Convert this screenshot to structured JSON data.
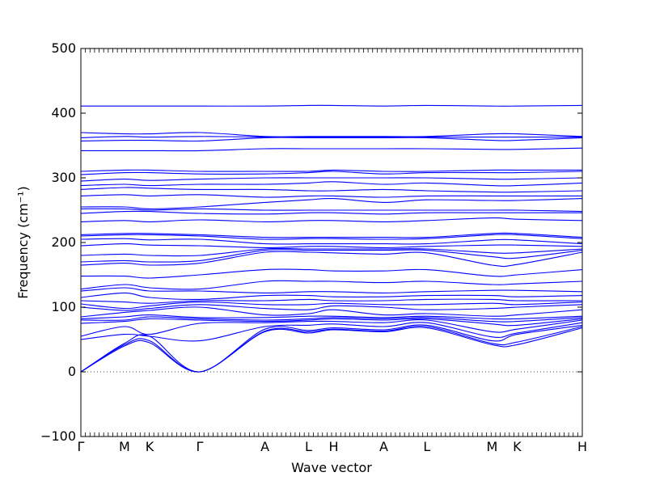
{
  "chart_data": {
    "type": "line",
    "title": "",
    "xlabel": "Wave vector",
    "ylabel": "Frequency (cm⁻¹)",
    "ylim": [
      -100,
      500
    ],
    "yticks": [
      -100,
      0,
      100,
      200,
      300,
      400,
      500
    ],
    "xlim": [
      0,
      1
    ],
    "x_ticks": [
      {
        "label": "Γ",
        "x": 0.0
      },
      {
        "label": "M",
        "x": 0.087
      },
      {
        "label": "K",
        "x": 0.137
      },
      {
        "label": "Γ",
        "x": 0.237
      },
      {
        "label": "A",
        "x": 0.367
      },
      {
        "label": "L",
        "x": 0.454
      },
      {
        "label": "H",
        "x": 0.504
      },
      {
        "label": "A",
        "x": 0.604
      },
      {
        "label": "L",
        "x": 0.69
      },
      {
        "label": "M",
        "x": 0.82
      },
      {
        "label": "K",
        "x": 0.87
      },
      {
        "label": "H",
        "x": 1.0
      }
    ],
    "zero_line": {
      "y": 0,
      "style": "dotted"
    },
    "line_color": "#0000ff",
    "series": [
      {
        "x": [
          0,
          0.087,
          0.137,
          0.237,
          0.367,
          0.454,
          0.504,
          0.604,
          0.69,
          0.82,
          0.87,
          1.0
        ],
        "y": [
          0,
          40,
          45,
          0,
          62,
          60,
          65,
          62,
          68,
          42,
          42,
          68
        ]
      },
      {
        "x": [
          0,
          0.087,
          0.137,
          0.237,
          0.367,
          0.454,
          0.504,
          0.604,
          0.69,
          0.82,
          0.87,
          1.0
        ],
        "y": [
          0,
          42,
          48,
          0,
          63,
          62,
          66,
          63,
          70,
          44,
          46,
          70
        ]
      },
      {
        "x": [
          0,
          0.087,
          0.137,
          0.237,
          0.367,
          0.454,
          0.504,
          0.604,
          0.69,
          0.82,
          0.87,
          1.0
        ],
        "y": [
          0,
          44,
          55,
          0,
          66,
          64,
          68,
          65,
          72,
          48,
          58,
          72
        ]
      },
      {
        "x": [
          0,
          0.087,
          0.137,
          0.237,
          0.367,
          0.454,
          0.504,
          0.604,
          0.69,
          0.82,
          0.87,
          1.0
        ],
        "y": [
          50,
          58,
          55,
          48,
          70,
          72,
          74,
          70,
          76,
          54,
          60,
          76
        ]
      },
      {
        "x": [
          0,
          0.087,
          0.137,
          0.237,
          0.367,
          0.454,
          0.504,
          0.604,
          0.69,
          0.82,
          0.87,
          1.0
        ],
        "y": [
          55,
          70,
          58,
          75,
          76,
          78,
          78,
          76,
          80,
          62,
          66,
          80
        ]
      },
      {
        "x": [
          0,
          0.087,
          0.137,
          0.237,
          0.367,
          0.454,
          0.504,
          0.604,
          0.69,
          0.82,
          0.87,
          1.0
        ],
        "y": [
          75,
          78,
          82,
          80,
          78,
          80,
          82,
          80,
          82,
          74,
          72,
          82
        ]
      },
      {
        "x": [
          0,
          0.087,
          0.137,
          0.237,
          0.367,
          0.454,
          0.504,
          0.604,
          0.69,
          0.82,
          0.87,
          1.0
        ],
        "y": [
          80,
          80,
          85,
          82,
          80,
          82,
          84,
          82,
          84,
          78,
          78,
          84
        ]
      },
      {
        "x": [
          0,
          0.087,
          0.137,
          0.237,
          0.367,
          0.454,
          0.504,
          0.604,
          0.69,
          0.82,
          0.87,
          1.0
        ],
        "y": [
          82,
          85,
          88,
          84,
          84,
          86,
          86,
          84,
          86,
          82,
          82,
          86
        ]
      },
      {
        "x": [
          0,
          0.087,
          0.137,
          0.237,
          0.367,
          0.454,
          0.504,
          0.604,
          0.69,
          0.82,
          0.87,
          1.0
        ],
        "y": [
          85,
          92,
          95,
          100,
          88,
          90,
          96,
          88,
          90,
          86,
          88,
          96
        ]
      },
      {
        "x": [
          0,
          0.087,
          0.137,
          0.237,
          0.367,
          0.454,
          0.504,
          0.604,
          0.69,
          0.82,
          0.87,
          1.0
        ],
        "y": [
          100,
          95,
          98,
          104,
          98,
          96,
          102,
          100,
          96,
          98,
          100,
          104
        ]
      },
      {
        "x": [
          0,
          0.087,
          0.137,
          0.237,
          0.367,
          0.454,
          0.504,
          0.604,
          0.69,
          0.82,
          0.87,
          1.0
        ],
        "y": [
          105,
          98,
          102,
          108,
          104,
          104,
          106,
          104,
          104,
          106,
          104,
          108
        ]
      },
      {
        "x": [
          0,
          0.087,
          0.137,
          0.237,
          0.367,
          0.454,
          0.504,
          0.604,
          0.69,
          0.82,
          0.87,
          1.0
        ],
        "y": [
          110,
          108,
          106,
          110,
          110,
          112,
          110,
          110,
          112,
          112,
          110,
          110
        ]
      },
      {
        "x": [
          0,
          0.087,
          0.137,
          0.237,
          0.367,
          0.454,
          0.504,
          0.604,
          0.69,
          0.82,
          0.87,
          1.0
        ],
        "y": [
          115,
          122,
          115,
          112,
          118,
          118,
          116,
          116,
          118,
          118,
          116,
          118
        ]
      },
      {
        "x": [
          0,
          0.087,
          0.137,
          0.237,
          0.367,
          0.454,
          0.504,
          0.604,
          0.69,
          0.82,
          0.87,
          1.0
        ],
        "y": [
          125,
          130,
          125,
          125,
          122,
          124,
          124,
          122,
          124,
          126,
          126,
          124
        ]
      },
      {
        "x": [
          0,
          0.087,
          0.137,
          0.237,
          0.367,
          0.454,
          0.504,
          0.604,
          0.69,
          0.82,
          0.87,
          1.0
        ],
        "y": [
          128,
          135,
          130,
          128,
          140,
          140,
          140,
          138,
          140,
          135,
          136,
          140
        ]
      },
      {
        "x": [
          0,
          0.087,
          0.137,
          0.237,
          0.367,
          0.454,
          0.504,
          0.604,
          0.69,
          0.82,
          0.87,
          1.0
        ],
        "y": [
          148,
          148,
          145,
          150,
          158,
          158,
          156,
          156,
          158,
          148,
          150,
          158
        ]
      },
      {
        "x": [
          0,
          0.087,
          0.137,
          0.237,
          0.367,
          0.454,
          0.504,
          0.604,
          0.69,
          0.82,
          0.87,
          1.0
        ],
        "y": [
          165,
          168,
          165,
          168,
          185,
          185,
          184,
          182,
          184,
          165,
          166,
          185
        ]
      },
      {
        "x": [
          0,
          0.087,
          0.137,
          0.237,
          0.367,
          0.454,
          0.504,
          0.604,
          0.69,
          0.82,
          0.87,
          1.0
        ],
        "y": [
          170,
          172,
          170,
          172,
          188,
          188,
          188,
          188,
          188,
          178,
          176,
          188
        ]
      },
      {
        "x": [
          0,
          0.087,
          0.137,
          0.237,
          0.367,
          0.454,
          0.504,
          0.604,
          0.69,
          0.82,
          0.87,
          1.0
        ],
        "y": [
          180,
          182,
          180,
          180,
          190,
          190,
          190,
          190,
          190,
          184,
          184,
          190
        ]
      },
      {
        "x": [
          0,
          0.087,
          0.137,
          0.237,
          0.367,
          0.454,
          0.504,
          0.604,
          0.69,
          0.82,
          0.87,
          1.0
        ],
        "y": [
          195,
          198,
          196,
          195,
          192,
          194,
          194,
          192,
          194,
          196,
          196,
          194
        ]
      },
      {
        "x": [
          0,
          0.087,
          0.137,
          0.237,
          0.367,
          0.454,
          0.504,
          0.604,
          0.69,
          0.82,
          0.87,
          1.0
        ],
        "y": [
          205,
          206,
          204,
          205,
          198,
          198,
          198,
          198,
          198,
          204,
          204,
          198
        ]
      },
      {
        "x": [
          0,
          0.087,
          0.137,
          0.237,
          0.367,
          0.454,
          0.504,
          0.604,
          0.69,
          0.82,
          0.87,
          1.0
        ],
        "y": [
          210,
          212,
          212,
          210,
          205,
          206,
          206,
          205,
          206,
          212,
          212,
          206
        ]
      },
      {
        "x": [
          0,
          0.087,
          0.137,
          0.237,
          0.367,
          0.454,
          0.504,
          0.604,
          0.69,
          0.82,
          0.87,
          1.0
        ],
        "y": [
          212,
          214,
          214,
          212,
          208,
          208,
          208,
          208,
          208,
          214,
          214,
          208
        ]
      },
      {
        "x": [
          0,
          0.087,
          0.137,
          0.237,
          0.367,
          0.454,
          0.504,
          0.604,
          0.69,
          0.82,
          0.87,
          1.0
        ],
        "y": [
          232,
          234,
          232,
          235,
          232,
          234,
          234,
          232,
          234,
          238,
          236,
          234
        ]
      },
      {
        "x": [
          0,
          0.087,
          0.137,
          0.237,
          0.367,
          0.454,
          0.504,
          0.604,
          0.69,
          0.82,
          0.87,
          1.0
        ],
        "y": [
          245,
          248,
          248,
          245,
          244,
          246,
          246,
          244,
          246,
          246,
          246,
          246
        ]
      },
      {
        "x": [
          0,
          0.087,
          0.137,
          0.237,
          0.367,
          0.454,
          0.504,
          0.604,
          0.69,
          0.82,
          0.87,
          1.0
        ],
        "y": [
          252,
          252,
          250,
          252,
          250,
          250,
          250,
          250,
          250,
          250,
          250,
          248
        ]
      },
      {
        "x": [
          0,
          0.087,
          0.137,
          0.237,
          0.367,
          0.454,
          0.504,
          0.604,
          0.69,
          0.82,
          0.87,
          1.0
        ],
        "y": [
          255,
          255,
          252,
          255,
          262,
          266,
          268,
          262,
          266,
          265,
          265,
          268
        ]
      },
      {
        "x": [
          0,
          0.087,
          0.137,
          0.237,
          0.367,
          0.454,
          0.504,
          0.604,
          0.69,
          0.82,
          0.87,
          1.0
        ],
        "y": [
          272,
          274,
          272,
          274,
          270,
          272,
          272,
          270,
          272,
          272,
          272,
          272
        ]
      },
      {
        "x": [
          0,
          0.087,
          0.137,
          0.237,
          0.367,
          0.454,
          0.504,
          0.604,
          0.69,
          0.82,
          0.87,
          1.0
        ],
        "y": [
          282,
          285,
          284,
          282,
          282,
          280,
          280,
          282,
          280,
          278,
          278,
          280
        ]
      },
      {
        "x": [
          0,
          0.087,
          0.137,
          0.237,
          0.367,
          0.454,
          0.504,
          0.604,
          0.69,
          0.82,
          0.87,
          1.0
        ],
        "y": [
          288,
          290,
          288,
          290,
          290,
          292,
          294,
          290,
          292,
          288,
          288,
          292
        ]
      },
      {
        "x": [
          0,
          0.087,
          0.137,
          0.237,
          0.367,
          0.454,
          0.504,
          0.604,
          0.69,
          0.82,
          0.87,
          1.0
        ],
        "y": [
          295,
          298,
          296,
          298,
          300,
          300,
          300,
          300,
          300,
          298,
          298,
          300
        ]
      },
      {
        "x": [
          0,
          0.087,
          0.137,
          0.237,
          0.367,
          0.454,
          0.504,
          0.604,
          0.69,
          0.82,
          0.87,
          1.0
        ],
        "y": [
          305,
          308,
          308,
          306,
          306,
          308,
          310,
          306,
          308,
          308,
          308,
          310
        ]
      },
      {
        "x": [
          0,
          0.087,
          0.137,
          0.237,
          0.367,
          0.454,
          0.504,
          0.604,
          0.69,
          0.82,
          0.87,
          1.0
        ],
        "y": [
          310,
          312,
          312,
          310,
          310,
          310,
          312,
          310,
          310,
          312,
          312,
          312
        ]
      },
      {
        "x": [
          0,
          0.087,
          0.137,
          0.237,
          0.367,
          0.454,
          0.504,
          0.604,
          0.69,
          0.82,
          0.87,
          1.0
        ],
        "y": [
          342,
          342,
          342,
          342,
          345,
          345,
          345,
          345,
          345,
          344,
          344,
          346
        ]
      },
      {
        "x": [
          0,
          0.087,
          0.137,
          0.237,
          0.367,
          0.454,
          0.504,
          0.604,
          0.69,
          0.82,
          0.87,
          1.0
        ],
        "y": [
          357,
          358,
          358,
          357,
          362,
          362,
          362,
          362,
          362,
          358,
          358,
          362
        ]
      },
      {
        "x": [
          0,
          0.087,
          0.137,
          0.237,
          0.367,
          0.454,
          0.504,
          0.604,
          0.69,
          0.82,
          0.87,
          1.0
        ],
        "y": [
          362,
          364,
          363,
          364,
          363,
          363,
          363,
          363,
          363,
          363,
          363,
          363
        ]
      },
      {
        "x": [
          0,
          0.087,
          0.137,
          0.237,
          0.367,
          0.454,
          0.504,
          0.604,
          0.69,
          0.82,
          0.87,
          1.0
        ],
        "y": [
          370,
          368,
          368,
          370,
          364,
          364,
          364,
          364,
          364,
          368,
          368,
          364
        ]
      },
      {
        "x": [
          0,
          0.087,
          0.137,
          0.237,
          0.367,
          0.454,
          0.504,
          0.604,
          0.69,
          0.82,
          0.87,
          1.0
        ],
        "y": [
          411,
          411,
          411,
          411,
          411,
          412,
          412,
          411,
          412,
          411,
          411,
          412
        ]
      }
    ]
  }
}
